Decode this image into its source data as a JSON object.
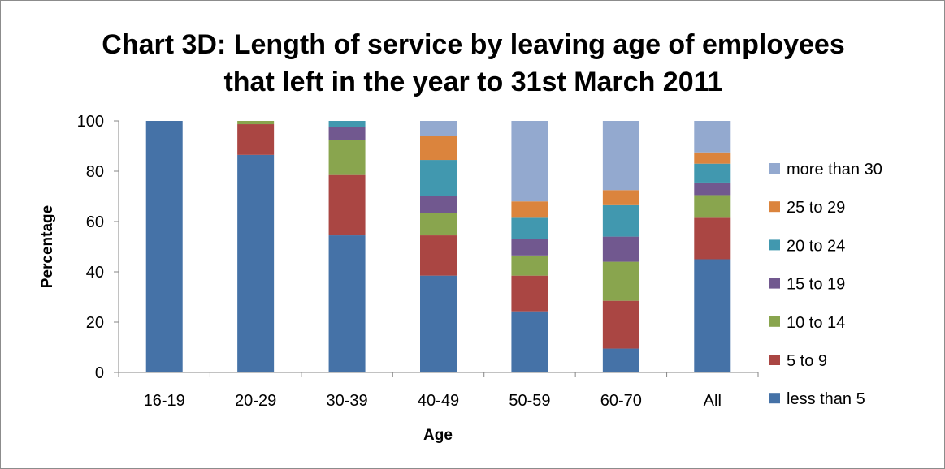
{
  "chart_data": {
    "type": "bar",
    "stacked": true,
    "title_lines": [
      "Chart 3D: Length of service by leaving age of employees",
      "that left in the year to 31st March 2011"
    ],
    "xlabel": "Age",
    "ylabel": "Percentage",
    "ylim": [
      0,
      100
    ],
    "yticks": [
      0,
      20,
      40,
      60,
      80,
      100
    ],
    "grid": false,
    "legend_position": "right",
    "categories": [
      "16-19",
      "20-29",
      "30-39",
      "40-49",
      "50-59",
      "60-70",
      "All"
    ],
    "series": [
      {
        "name": "less than 5",
        "color": "#4572A7",
        "values": [
          100,
          86.5,
          54.5,
          38.5,
          24.3,
          9.5,
          45.0
        ]
      },
      {
        "name": "5 to 9",
        "color": "#AA4643",
        "values": [
          0,
          12.2,
          24.0,
          16.0,
          14.2,
          19.0,
          16.5
        ]
      },
      {
        "name": "10 to 14",
        "color": "#89A54E",
        "values": [
          0,
          1.3,
          14.0,
          9.0,
          8.0,
          15.5,
          9.0
        ]
      },
      {
        "name": "15 to 19",
        "color": "#71588F",
        "values": [
          0,
          0,
          5.0,
          6.5,
          6.5,
          10.0,
          5.0
        ]
      },
      {
        "name": "20 to 24",
        "color": "#4198AF",
        "values": [
          0,
          0,
          2.5,
          14.5,
          8.5,
          12.5,
          7.5
        ]
      },
      {
        "name": "25 to 29",
        "color": "#DB843D",
        "values": [
          0,
          0,
          0,
          9.5,
          6.5,
          6.0,
          4.5
        ]
      },
      {
        "name": "more than 30",
        "color": "#93A9CF",
        "values": [
          0,
          0,
          0,
          6.0,
          32.0,
          27.5,
          12.5
        ]
      }
    ]
  }
}
